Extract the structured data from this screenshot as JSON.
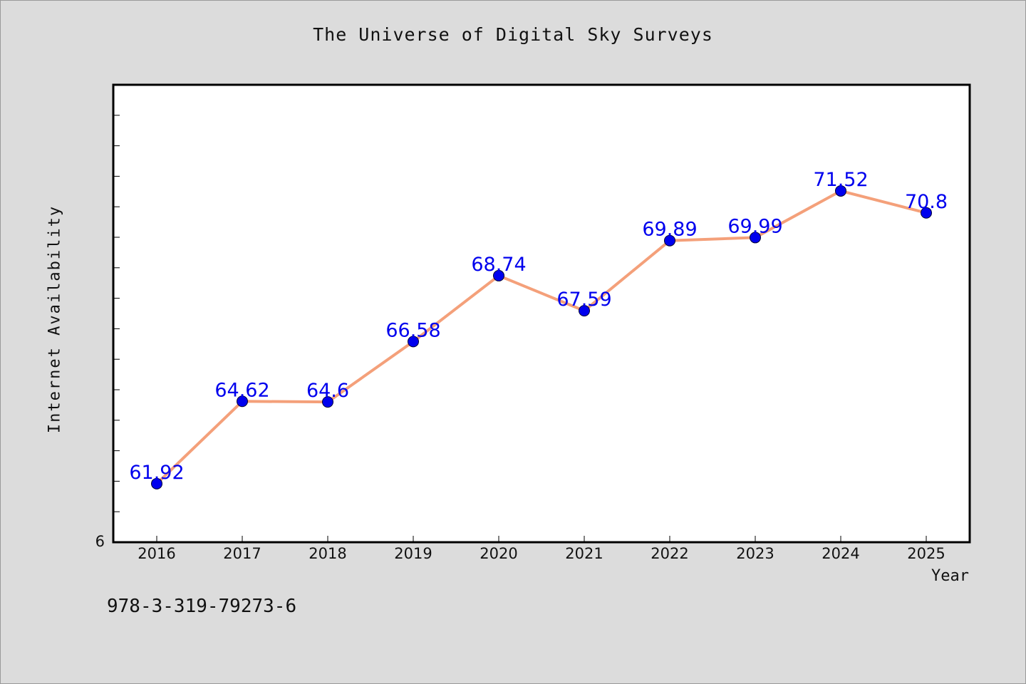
{
  "chart_data": {
    "type": "line",
    "title": "The Universe of Digital Sky Surveys",
    "xlabel": "Year",
    "ylabel": "Internet Availability",
    "categories": [
      "2016",
      "2017",
      "2018",
      "2019",
      "2020",
      "2021",
      "2022",
      "2023",
      "2024",
      "2025"
    ],
    "series": [
      {
        "values": [
          61.92,
          64.62,
          64.6,
          66.58,
          68.74,
          67.59,
          69.89,
          69.99,
          71.52,
          70.8
        ],
        "data_labels": [
          "61.92",
          "64.62",
          "64.6",
          "66.58",
          "68.74",
          "67.59",
          "69.89",
          "69.99",
          "71.52",
          "70.8"
        ]
      }
    ],
    "ylim": [
      60,
      75
    ],
    "y_tick_labels": [
      "6"
    ],
    "grid": false,
    "legend": "none",
    "colors": {
      "line": "#f4a07a",
      "marker": "#0000ee",
      "data_label": "#0000ee",
      "plot_background": "#ffffff",
      "page_background": "#dcdcdc"
    }
  },
  "footer": {
    "code": "978-3-319-79273-6"
  }
}
